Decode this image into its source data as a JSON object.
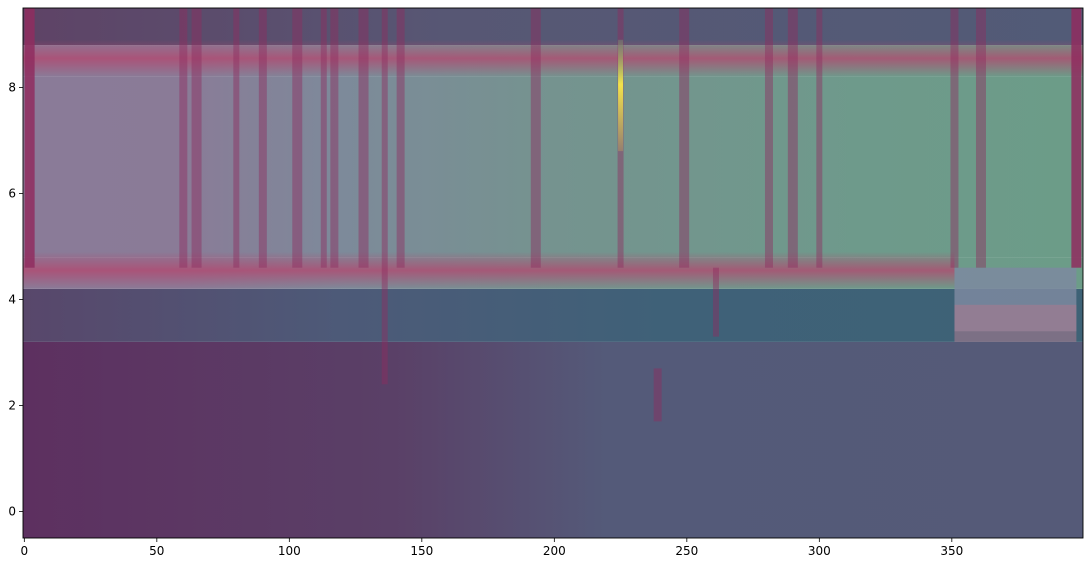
{
  "chart_data": {
    "type": "heatmap",
    "title": "",
    "xlabel": "",
    "ylabel": "",
    "xlim": [
      -0.5,
      399.5
    ],
    "ylim": [
      -0.5,
      9.5
    ],
    "x_ticks": [
      0,
      50,
      100,
      150,
      200,
      250,
      300,
      350
    ],
    "x_tick_labels": [
      "0",
      "50",
      "100",
      "150",
      "200",
      "250",
      "300",
      "350"
    ],
    "y_ticks": [
      0,
      2,
      4,
      6,
      8
    ],
    "y_tick_labels": [
      "0",
      "2",
      "4",
      "6",
      "8"
    ],
    "colormap": "viridis",
    "overlay_colormap": "magenta",
    "grid": false,
    "legend": "none",
    "row_bands": [
      {
        "row_range": [
          -0.5,
          3.2
        ],
        "value_description": "low"
      },
      {
        "row_range": [
          3.2,
          4.2
        ],
        "value_description": "medium-low (teal)"
      },
      {
        "row_range": [
          4.2,
          4.8
        ],
        "value_description": "high overlay (pink band)"
      },
      {
        "row_range": [
          4.8,
          8.2
        ],
        "value_description": "medium-high (green)"
      },
      {
        "row_range": [
          8.2,
          8.8
        ],
        "value_description": "high overlay (pink band)"
      },
      {
        "row_range": [
          8.8,
          9.5
        ],
        "value_description": "low"
      }
    ],
    "notable_columns": [
      2,
      60,
      65,
      80,
      90,
      103,
      113,
      117,
      128,
      136,
      142,
      193,
      225,
      239,
      249,
      261,
      281,
      290,
      300,
      351,
      361,
      397
    ],
    "peak": {
      "x": 225,
      "y": 8,
      "description": "bright yellow spike"
    }
  },
  "colors": {
    "plum": "#5b2f5c",
    "slate": "#545a79",
    "teal": "#3f6178",
    "sage": "#6e9a8b",
    "mauve": "#8a7b98",
    "pink": "#b4466e",
    "highlight": "#f4e34a"
  }
}
